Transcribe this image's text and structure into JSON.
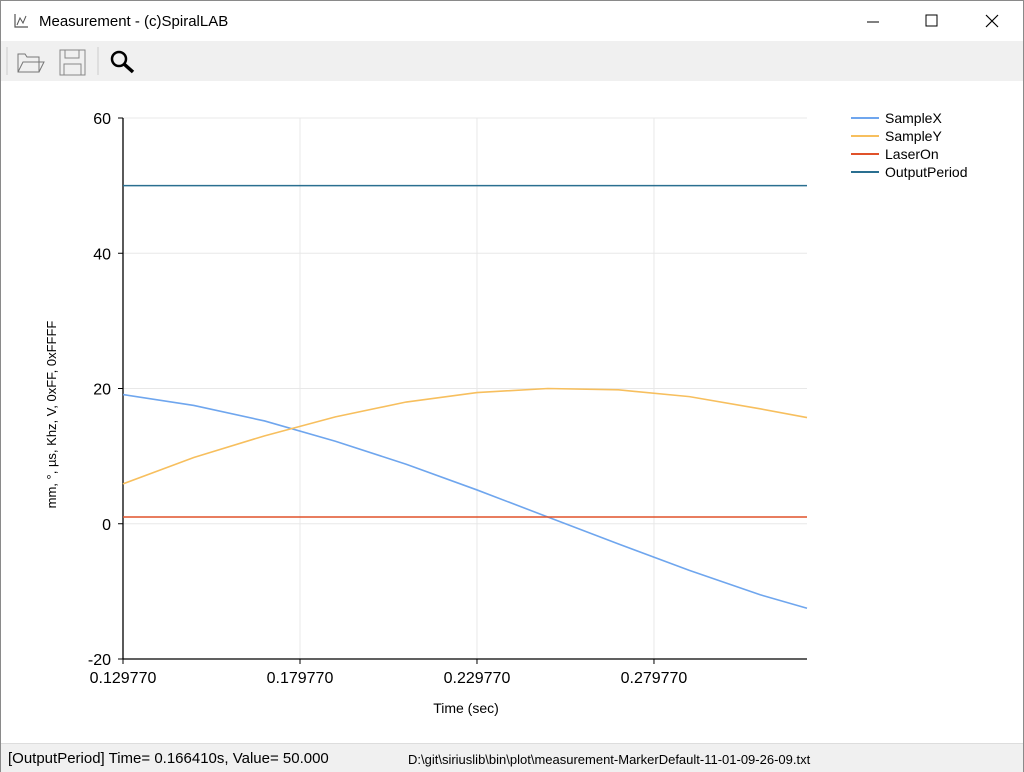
{
  "window": {
    "title": "Measurement - (c)SpiralLAB"
  },
  "status": {
    "marker": "[OutputPeriod]  Time= 0.166410s, Value= 50.000",
    "file": "D:\\git\\siriuslib\\bin\\plot\\measurement-MarkerDefault-11-01-09-26-09.txt"
  },
  "chart_data": {
    "type": "line",
    "x_label": "Time (sec)",
    "y_label": "mm, °, µs, Khz, V, 0xFF, 0xFFFF",
    "x": [
      0.12977,
      0.14977,
      0.16977,
      0.18977,
      0.20977,
      0.22977,
      0.24977,
      0.26977,
      0.28977,
      0.30977,
      0.323
    ],
    "series": [
      {
        "name": "SampleX",
        "color": "#6fa6ee",
        "values": [
          19.1,
          17.5,
          15.2,
          12.2,
          8.8,
          5.0,
          1.0,
          -3.0,
          -6.9,
          -10.5,
          -12.5
        ]
      },
      {
        "name": "SampleY",
        "color": "#f7bf5e",
        "values": [
          5.9,
          9.8,
          13.0,
          15.8,
          18.0,
          19.4,
          20.0,
          19.8,
          18.8,
          17.0,
          15.7
        ]
      },
      {
        "name": "LaserOn",
        "color": "#e0522a",
        "values": [
          1,
          1,
          1,
          1,
          1,
          1,
          1,
          1,
          1,
          1,
          1
        ]
      },
      {
        "name": "OutputPeriod",
        "color": "#2a6f90",
        "values": [
          50,
          50,
          50,
          50,
          50,
          50,
          50,
          50,
          50,
          50,
          50
        ]
      }
    ],
    "xlim": [
      0.12977,
      0.323
    ],
    "ylim": [
      -20,
      60
    ],
    "xticks": [
      {
        "value": 0.12977,
        "label": "0.129770"
      },
      {
        "value": 0.17977,
        "label": "0.179770"
      },
      {
        "value": 0.22977,
        "label": "0.229770"
      },
      {
        "value": 0.27977,
        "label": "0.279770"
      }
    ],
    "yticks": [
      -20,
      0,
      20,
      40,
      60
    ],
    "grid": true,
    "legend": "top-right"
  }
}
